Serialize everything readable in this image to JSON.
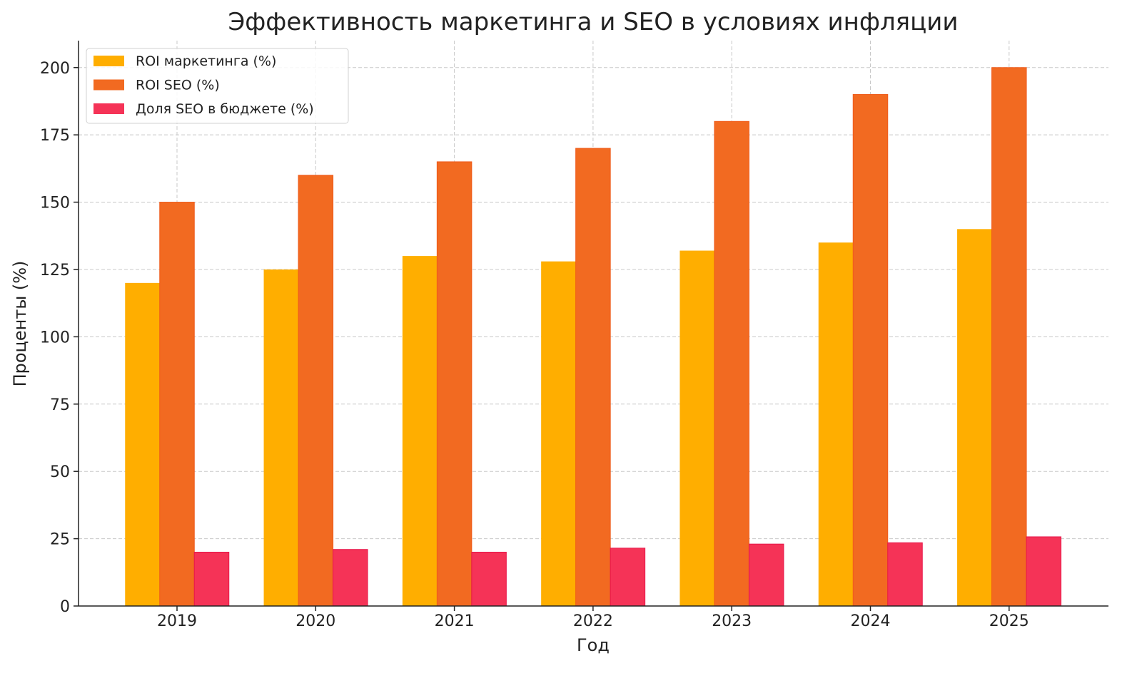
{
  "chart_data": {
    "type": "bar",
    "title": "Эффективность маркетинга и SEO в условиях инфляции",
    "xlabel": "Год",
    "ylabel": "Проценты (%)",
    "categories": [
      "2019",
      "2020",
      "2021",
      "2022",
      "2023",
      "2024",
      "2025"
    ],
    "ylim": [
      0,
      210
    ],
    "yticks": [
      0,
      25,
      50,
      75,
      100,
      125,
      150,
      175,
      200
    ],
    "grid": true,
    "legend_position": "top-left",
    "series": [
      {
        "name": "ROI маркетинга (%)",
        "color": "#FFAE00",
        "values": [
          120,
          125,
          130,
          128,
          132,
          135,
          140
        ]
      },
      {
        "name": "ROI SEO (%)",
        "color": "#F26A21",
        "values": [
          150,
          160,
          165,
          170,
          180,
          190,
          200
        ]
      },
      {
        "name": "Доля SEO в бюджете (%)",
        "color": "#F53357",
        "values": [
          20,
          21,
          20,
          21.5,
          23,
          23.5,
          25.7
        ]
      }
    ]
  }
}
